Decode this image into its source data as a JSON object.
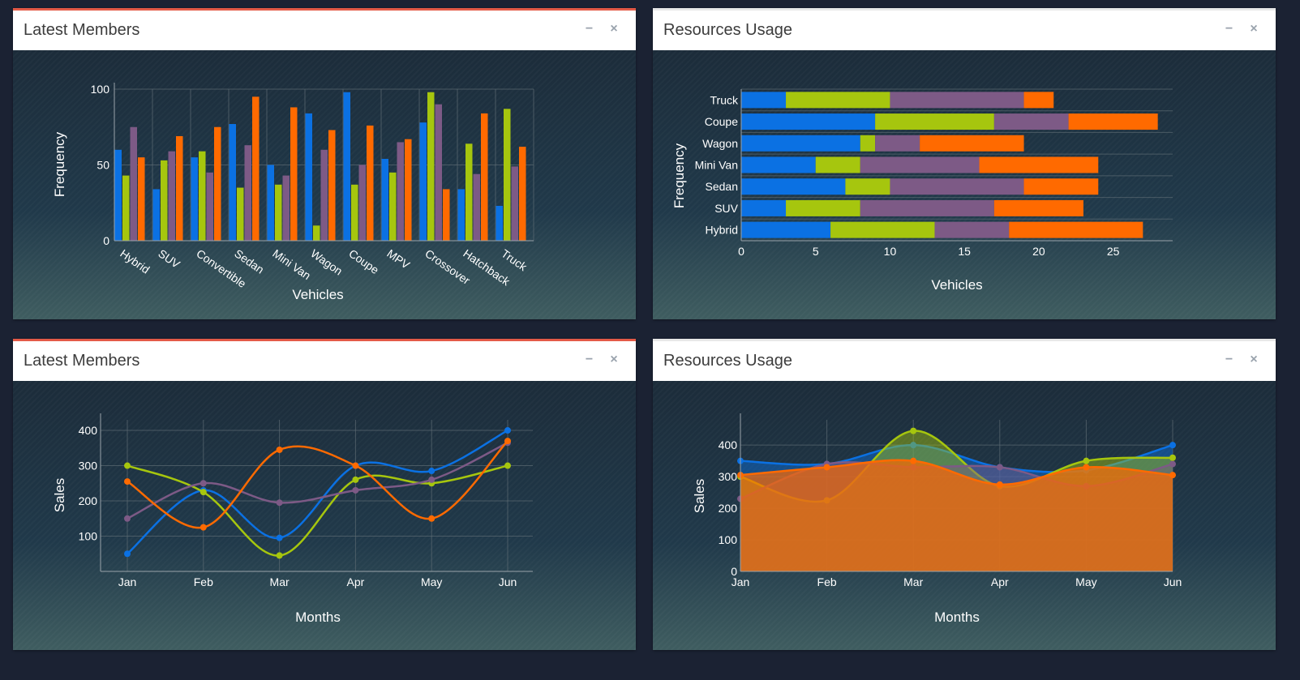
{
  "panels": [
    {
      "title": "Latest Members",
      "minimize": "−",
      "close": "×"
    },
    {
      "title": "Resources Usage",
      "minimize": "−",
      "close": "×"
    },
    {
      "title": "Latest Members",
      "minimize": "−",
      "close": "×"
    },
    {
      "title": "Resources Usage",
      "minimize": "−",
      "close": "×"
    }
  ],
  "colors": {
    "blue": "#0b71e3",
    "green": "#a6c60e",
    "purple": "#7d5a86",
    "orange": "#ff6a00",
    "accent": "#e45a47"
  },
  "chart_data": [
    {
      "type": "bar",
      "xlabel": "Vehicles",
      "ylabel": "Frequency",
      "ylim": [
        0,
        100
      ],
      "yticks": [
        0,
        50,
        100
      ],
      "grid": true,
      "categories": [
        "Hybrid",
        "SUV",
        "Convertible",
        "Sedan",
        "Mini Van",
        "Wagon",
        "Coupe",
        "MPV",
        "Crossover",
        "Hatchback",
        "Truck"
      ],
      "series": [
        {
          "values": [
            60,
            34,
            55,
            77,
            50,
            84,
            98,
            54,
            78,
            34,
            23
          ]
        },
        {
          "values": [
            43,
            53,
            59,
            35,
            37,
            10,
            37,
            45,
            98,
            64,
            87
          ]
        },
        {
          "values": [
            75,
            59,
            45,
            63,
            43,
            60,
            50,
            65,
            90,
            44,
            49
          ]
        },
        {
          "values": [
            55,
            69,
            75,
            95,
            88,
            73,
            76,
            67,
            34,
            84,
            62
          ]
        }
      ]
    },
    {
      "type": "bar",
      "orientation": "horizontal",
      "stacked": true,
      "xlabel": "Vehicles",
      "ylabel": "Frequency",
      "xlim": [
        0,
        29
      ],
      "xticks": [
        0,
        5,
        10,
        15,
        20,
        25
      ],
      "grid": true,
      "categories": [
        "Hybrid",
        "SUV",
        "Sedan",
        "Mini Van",
        "Wagon",
        "Coupe",
        "Truck"
      ],
      "series": [
        {
          "values": [
            6,
            3,
            7,
            5,
            8,
            9,
            3
          ]
        },
        {
          "values": [
            7,
            5,
            3,
            3,
            1,
            8,
            7
          ]
        },
        {
          "values": [
            5,
            9,
            9,
            8,
            3,
            5,
            9
          ]
        },
        {
          "values": [
            9,
            6,
            5,
            8,
            7,
            6,
            2
          ]
        }
      ]
    },
    {
      "type": "line",
      "xlabel": "Months",
      "ylabel": "Sales",
      "ylim": [
        0,
        430
      ],
      "yticks": [
        100,
        200,
        300,
        400
      ],
      "grid": true,
      "categories": [
        "Jan",
        "Feb",
        "Mar",
        "Apr",
        "May",
        "Jun"
      ],
      "series": [
        {
          "values": [
            50,
            230,
            95,
            300,
            285,
            400
          ]
        },
        {
          "values": [
            300,
            225,
            45,
            260,
            250,
            300
          ]
        },
        {
          "values": [
            150,
            250,
            195,
            230,
            260,
            365
          ]
        },
        {
          "values": [
            255,
            125,
            345,
            300,
            150,
            370
          ]
        }
      ]
    },
    {
      "type": "area",
      "xlabel": "Months",
      "ylabel": "Sales",
      "ylim": [
        0,
        480
      ],
      "yticks": [
        0,
        100,
        200,
        300,
        400
      ],
      "grid": true,
      "categories": [
        "Jan",
        "Feb",
        "Mar",
        "Apr",
        "May",
        "Jun"
      ],
      "series": [
        {
          "values": [
            350,
            340,
            400,
            330,
            320,
            400
          ]
        },
        {
          "values": [
            300,
            225,
            445,
            270,
            350,
            360
          ]
        },
        {
          "values": [
            230,
            340,
            330,
            330,
            270,
            340
          ]
        },
        {
          "values": [
            305,
            330,
            350,
            275,
            330,
            305
          ]
        }
      ]
    }
  ]
}
